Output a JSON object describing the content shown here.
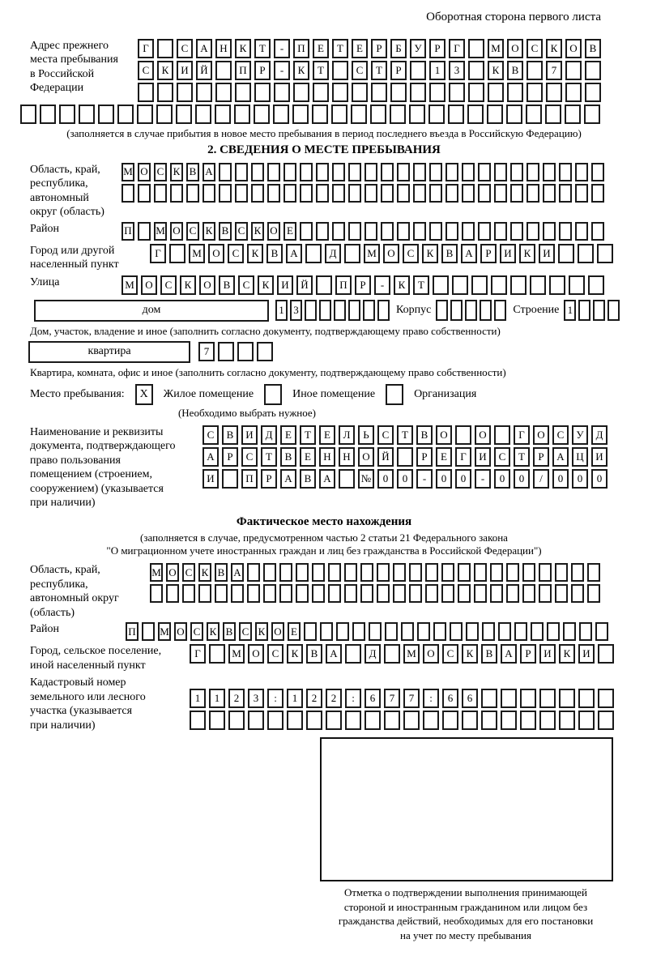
{
  "page": {
    "back_side_note": "Оборотная сторона первого листа"
  },
  "prev_address": {
    "label": "Адрес прежнего\nместа пребывания\nв Российской\nФедерации",
    "row1": [
      "Г",
      "",
      "С",
      "А",
      "Н",
      "К",
      "Т",
      "-",
      "П",
      "Е",
      "Т",
      "Е",
      "Р",
      "Б",
      "У",
      "Р",
      "Г",
      "",
      "М",
      "О",
      "С",
      "К",
      "О",
      "В"
    ],
    "row2": [
      "С",
      "К",
      "И",
      "Й",
      "",
      "П",
      "Р",
      "-",
      "К",
      "Т",
      "",
      "С",
      "Т",
      "Р",
      "",
      "1",
      "3",
      "",
      "К",
      "В",
      "",
      "7",
      "",
      ""
    ],
    "row3": [
      "",
      "",
      "",
      "",
      "",
      "",
      "",
      "",
      "",
      "",
      "",
      "",
      "",
      "",
      "",
      "",
      "",
      "",
      "",
      "",
      "",
      "",
      "",
      ""
    ],
    "row4": [
      "",
      "",
      "",
      "",
      "",
      "",
      "",
      "",
      "",
      "",
      "",
      "",
      "",
      "",
      "",
      "",
      "",
      "",
      "",
      "",
      "",
      "",
      "",
      "",
      "",
      "",
      "",
      "",
      "",
      ""
    ],
    "caption": "(заполняется в случае прибытия в новое место пребывания в период последнего въезда в Российскую Федерацию)"
  },
  "section2": {
    "title": "2. СВЕДЕНИЯ О МЕСТЕ ПРЕБЫВАНИЯ",
    "oblast": {
      "label": "Область, край,\nреспублика,\nавтономный\nокруг (область)",
      "row1": [
        "М",
        "О",
        "С",
        "К",
        "В",
        "А",
        "",
        "",
        "",
        "",
        "",
        "",
        "",
        "",
        "",
        "",
        "",
        "",
        "",
        "",
        "",
        "",
        "",
        "",
        "",
        "",
        "",
        "",
        "",
        ""
      ],
      "row2": [
        "",
        "",
        "",
        "",
        "",
        "",
        "",
        "",
        "",
        "",
        "",
        "",
        "",
        "",
        "",
        "",
        "",
        "",
        "",
        "",
        "",
        "",
        "",
        "",
        "",
        "",
        "",
        "",
        "",
        ""
      ]
    },
    "raion": {
      "label": "Район",
      "row": [
        "П",
        "",
        "М",
        "О",
        "С",
        "К",
        "В",
        "С",
        "К",
        "О",
        "Е",
        "",
        "",
        "",
        "",
        "",
        "",
        "",
        "",
        "",
        "",
        "",
        "",
        "",
        "",
        "",
        "",
        "",
        "",
        ""
      ]
    },
    "gorod": {
      "label": "Город или другой\nнаселенный пункт",
      "row": [
        "Г",
        "",
        "М",
        "О",
        "С",
        "К",
        "В",
        "А",
        "",
        "Д",
        "",
        "М",
        "О",
        "С",
        "К",
        "В",
        "А",
        "Р",
        "И",
        "К",
        "И",
        "",
        "",
        ""
      ]
    },
    "ulitsa": {
      "label": "Улица",
      "row": [
        "М",
        "О",
        "С",
        "К",
        "О",
        "В",
        "С",
        "К",
        "И",
        "Й",
        "",
        "П",
        "Р",
        "-",
        "К",
        "Т",
        "",
        "",
        "",
        "",
        "",
        "",
        "",
        "",
        ""
      ]
    },
    "dom": {
      "box_label": "дом",
      "cells": [
        "1",
        "3",
        "",
        "",
        "",
        "",
        "",
        ""
      ],
      "korpus_label": "Корпус",
      "korpus_cells": [
        "",
        "",
        "",
        "",
        ""
      ],
      "stroenie_label": "Строение",
      "stroenie_cells": [
        "1",
        "",
        "",
        ""
      ]
    },
    "dom_caption": "Дом, участок, владение и иное (заполнить согласно документу, подтверждающему право собственности)",
    "kvartira": {
      "box_label": "квартира",
      "cells": [
        "7",
        "",
        "",
        ""
      ]
    },
    "kvartira_caption": "Квартира, комната, офис и иное (заполнить согласно документу, подтверждающему право собственности)",
    "mesto": {
      "label": "Место пребывания:",
      "options": [
        {
          "label": "Жилое помещение",
          "mark": "X"
        },
        {
          "label": "Иное помещение",
          "mark": ""
        },
        {
          "label": "Организация",
          "mark": ""
        }
      ],
      "note": "(Необходимо выбрать нужное)"
    },
    "document": {
      "label": "Наименование и реквизиты\nдокумента, подтверждающего\nправо пользования\nпомещением (строением,\nсооружением) (указывается\nпри наличии)",
      "row1": [
        "С",
        "В",
        "И",
        "Д",
        "Е",
        "Т",
        "Е",
        "Л",
        "Ь",
        "С",
        "Т",
        "В",
        "О",
        "",
        "О",
        "",
        "Г",
        "О",
        "С",
        "У",
        "Д"
      ],
      "row2": [
        "А",
        "Р",
        "С",
        "Т",
        "В",
        "Е",
        "Н",
        "Н",
        "О",
        "Й",
        "",
        "Р",
        "Е",
        "Г",
        "И",
        "С",
        "Т",
        "Р",
        "А",
        "Ц",
        "И"
      ],
      "row3": [
        "И",
        "",
        "П",
        "Р",
        "А",
        "В",
        "А",
        "",
        "№",
        "0",
        "0",
        "-",
        "0",
        "0",
        "-",
        "0",
        "0",
        "/",
        "0",
        "0",
        "0"
      ]
    }
  },
  "fact_location": {
    "title": "Фактическое место нахождения",
    "note": "(заполняется в случае, предусмотренном частью 2 статьи 21 Федерального закона\n\"О миграционном учете иностранных граждан и лиц без гражданства в Российской Федерации\")",
    "oblast": {
      "label": "Область, край,\nреспублика,\nавтономный округ\n(область)",
      "row1": [
        "М",
        "О",
        "С",
        "К",
        "В",
        "А",
        "",
        "",
        "",
        "",
        "",
        "",
        "",
        "",
        "",
        "",
        "",
        "",
        "",
        "",
        "",
        "",
        "",
        "",
        "",
        "",
        "",
        ""
      ],
      "row2": [
        "",
        "",
        "",
        "",
        "",
        "",
        "",
        "",
        "",
        "",
        "",
        "",
        "",
        "",
        "",
        "",
        "",
        "",
        "",
        "",
        "",
        "",
        "",
        "",
        "",
        "",
        "",
        ""
      ]
    },
    "raion": {
      "label": "Район",
      "row": [
        "П",
        "",
        "М",
        "О",
        "С",
        "К",
        "В",
        "С",
        "К",
        "О",
        "Е",
        "",
        "",
        "",
        "",
        "",
        "",
        "",
        "",
        "",
        "",
        "",
        "",
        "",
        "",
        "",
        "",
        "",
        "",
        ""
      ]
    },
    "gorod": {
      "label": "Город, сельское поселение,\nиной населенный пункт",
      "row": [
        "Г",
        "",
        "М",
        "О",
        "С",
        "К",
        "В",
        "А",
        "",
        "Д",
        "",
        "М",
        "О",
        "С",
        "К",
        "В",
        "А",
        "Р",
        "И",
        "К",
        "И",
        ""
      ]
    },
    "kadastr": {
      "label": "Кадастровый номер\nземельного или лесного\nучастка (указывается\nпри наличии)",
      "row1": [
        "1",
        "1",
        "2",
        "3",
        ":",
        "1",
        "2",
        "2",
        ":",
        "6",
        "7",
        "7",
        ":",
        "6",
        "6",
        "",
        "",
        "",
        "",
        "",
        "",
        ""
      ],
      "row2": [
        "",
        "",
        "",
        "",
        "",
        "",
        "",
        "",
        "",
        "",
        "",
        "",
        "",
        "",
        "",
        "",
        "",
        "",
        "",
        "",
        "",
        ""
      ]
    },
    "mark_box_caption": "Отметка о подтверждении выполнения принимающей\nстороной и иностранным гражданином или лицом без\nгражданства действий, необходимых для его постановки\nна учет по месту пребывания"
  }
}
